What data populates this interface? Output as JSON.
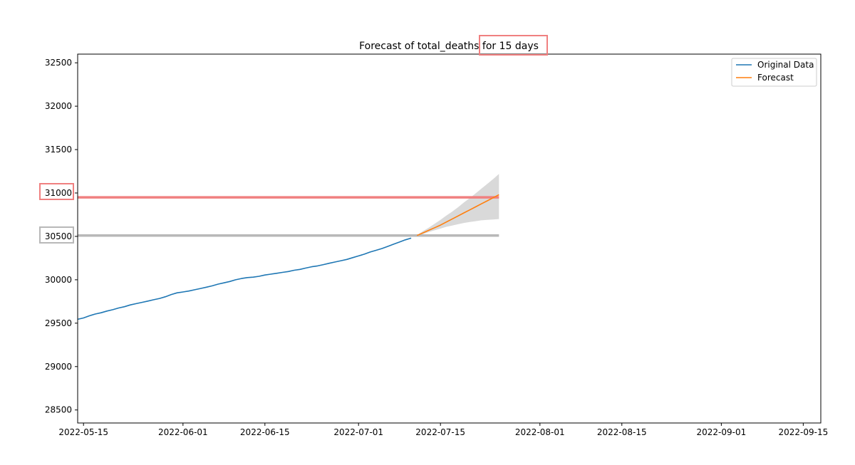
{
  "chart_data": {
    "type": "line",
    "title": "Forecast of total_deaths for 15 days",
    "xlabel": "",
    "ylabel": "",
    "xlim": [
      "2022-05-14",
      "2022-09-18"
    ],
    "ylim": [
      28350,
      32600
    ],
    "x_ticks": [
      "2022-05-15",
      "2022-06-01",
      "2022-06-15",
      "2022-07-01",
      "2022-07-15",
      "2022-08-01",
      "2022-08-15",
      "2022-09-01",
      "2022-09-15"
    ],
    "y_ticks": [
      28500,
      29000,
      29500,
      30000,
      30500,
      31000,
      31500,
      32000,
      32500
    ],
    "grid": false,
    "legend": {
      "placement": "top-right",
      "entries": [
        "Original Data",
        "Forecast"
      ]
    },
    "colors": {
      "original": "#1f77b4",
      "forecast": "#ff7f0e",
      "band": "#bfbfbf",
      "highlight_red": "#f08080",
      "highlight_gray": "#b8b8b8"
    },
    "series": [
      {
        "name": "Original Data",
        "x": [
          "2022-05-14",
          "2022-05-15",
          "2022-05-16",
          "2022-05-17",
          "2022-05-18",
          "2022-05-19",
          "2022-05-20",
          "2022-05-21",
          "2022-05-22",
          "2022-05-23",
          "2022-05-24",
          "2022-05-25",
          "2022-05-26",
          "2022-05-27",
          "2022-05-28",
          "2022-05-29",
          "2022-05-30",
          "2022-05-31",
          "2022-06-01",
          "2022-06-02",
          "2022-06-03",
          "2022-06-04",
          "2022-06-05",
          "2022-06-06",
          "2022-06-07",
          "2022-06-08",
          "2022-06-09",
          "2022-06-10",
          "2022-06-11",
          "2022-06-12",
          "2022-06-13",
          "2022-06-14",
          "2022-06-15",
          "2022-06-16",
          "2022-06-17",
          "2022-06-18",
          "2022-06-19",
          "2022-06-20",
          "2022-06-21",
          "2022-06-22",
          "2022-06-23",
          "2022-06-24",
          "2022-06-25",
          "2022-06-26",
          "2022-06-27",
          "2022-06-28",
          "2022-06-29",
          "2022-06-30",
          "2022-07-01",
          "2022-07-02",
          "2022-07-03",
          "2022-07-04",
          "2022-07-05",
          "2022-07-06",
          "2022-07-07",
          "2022-07-08",
          "2022-07-09",
          "2022-07-10"
        ],
        "values": [
          29545,
          29560,
          29585,
          29605,
          29620,
          29640,
          29655,
          29675,
          29690,
          29710,
          29725,
          29740,
          29755,
          29770,
          29785,
          29805,
          29830,
          29850,
          29860,
          29870,
          29885,
          29900,
          29915,
          29930,
          29950,
          29965,
          29980,
          30000,
          30015,
          30025,
          30030,
          30040,
          30055,
          30065,
          30075,
          30085,
          30095,
          30110,
          30120,
          30135,
          30150,
          30160,
          30175,
          30190,
          30205,
          30220,
          30235,
          30255,
          30275,
          30295,
          30320,
          30340,
          30360,
          30385,
          30410,
          30435,
          30460,
          30480
        ]
      },
      {
        "name": "Forecast",
        "x": [
          "2022-07-11",
          "2022-07-12",
          "2022-07-13",
          "2022-07-14",
          "2022-07-15",
          "2022-07-16",
          "2022-07-17",
          "2022-07-18",
          "2022-07-19",
          "2022-07-20",
          "2022-07-21",
          "2022-07-22",
          "2022-07-23",
          "2022-07-24",
          "2022-07-25"
        ],
        "values": [
          30510,
          30540,
          30570,
          30600,
          30630,
          30665,
          30700,
          30735,
          30770,
          30805,
          30840,
          30875,
          30910,
          30945,
          30980
        ],
        "lower": [
          30505,
          30525,
          30550,
          30570,
          30590,
          30610,
          30625,
          30640,
          30655,
          30665,
          30675,
          30685,
          30690,
          30695,
          30700
        ],
        "upper": [
          30515,
          30560,
          30600,
          30645,
          30690,
          30740,
          30785,
          30835,
          30890,
          30940,
          30995,
          31050,
          31105,
          31160,
          31220
        ]
      }
    ],
    "reference_lines": [
      {
        "value": 30950,
        "color": "highlight_red"
      },
      {
        "value": 30510,
        "color": "highlight_gray"
      }
    ]
  }
}
